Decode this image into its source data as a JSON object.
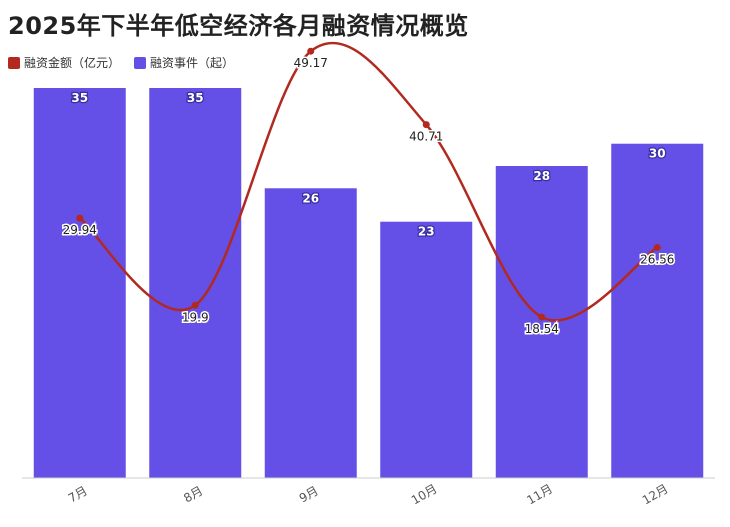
{
  "chart_data": {
    "type": "bar",
    "title": "2025年下半年低空经济各月融资情况概览",
    "categories": [
      "7月",
      "8月",
      "9月",
      "10月",
      "11月",
      "12月"
    ],
    "legend_position": "top-left",
    "grid": false,
    "series": [
      {
        "name": "融资金额（亿元）",
        "type": "line",
        "color": "#b22a1f",
        "values": [
          29.94,
          19.9,
          49.17,
          40.71,
          18.54,
          26.56
        ]
      },
      {
        "name": "融资事件（起）",
        "type": "bar",
        "color": "#6450e6",
        "values": [
          35,
          35,
          26,
          23,
          28,
          30
        ]
      }
    ],
    "bar_ylim": [
      0,
      35
    ],
    "line_ylim": [
      0,
      50
    ]
  }
}
